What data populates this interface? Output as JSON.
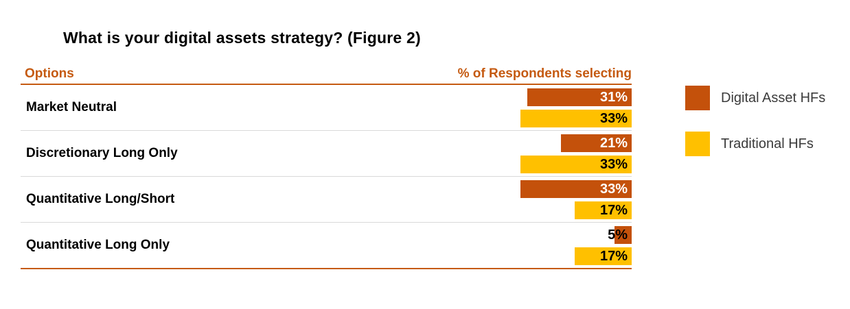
{
  "title": "What is your digital assets strategy? (Figure 2)",
  "table": {
    "options_header": "Options",
    "respondents_header": "% of Respondents selecting"
  },
  "colors": {
    "digital_asset_bar": "#C4510B",
    "traditional_bar": "#FFC000",
    "header_text_and_rules": "#C55A11",
    "row_separator": "#D9D9D9",
    "legend_text": "#3B3B3B",
    "value_on_dark": "#FFFFFF",
    "value_on_yellow": "#000000",
    "value_outside_bar": "#000000"
  },
  "chart_data": {
    "type": "bar",
    "orientation": "horizontal",
    "bars_right_aligned": true,
    "title": "What is your digital assets strategy? (Figure 2)",
    "categories": [
      "Market Neutral",
      "Discretionary Long Only",
      "Quantitative Long/Short",
      "Quantitative Long Only"
    ],
    "series": [
      {
        "name": "Digital Asset HFs",
        "color": "#C4510B",
        "label_color": "#FFFFFF",
        "values": [
          31,
          21,
          33,
          5
        ]
      },
      {
        "name": "Traditional HFs",
        "color": "#FFC000",
        "label_color": "#000000",
        "values": [
          33,
          33,
          17,
          17
        ]
      }
    ],
    "value_suffix": "%",
    "outside_label_color": "#000000",
    "legend_position": "right",
    "grid": false
  }
}
